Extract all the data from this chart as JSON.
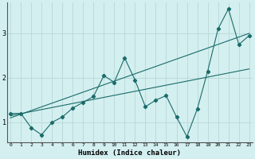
{
  "xlabel": "Humidex (Indice chaleur)",
  "bg_color": "#d4efef",
  "line_color": "#1a6b6b",
  "grid_color": "#b8d8d8",
  "x_ticks": [
    0,
    1,
    2,
    3,
    4,
    5,
    6,
    7,
    8,
    9,
    10,
    11,
    12,
    13,
    14,
    15,
    16,
    17,
    18,
    19,
    20,
    21,
    22,
    23
  ],
  "y_ticks": [
    1,
    2,
    3
  ],
  "xlim": [
    -0.3,
    23.3
  ],
  "ylim": [
    0.55,
    3.7
  ],
  "jagged": {
    "x": [
      0,
      1,
      2,
      3,
      4,
      5,
      6,
      7,
      8,
      9,
      10,
      11,
      12,
      13,
      14,
      15,
      16,
      17,
      18,
      19,
      20,
      21,
      22,
      23
    ],
    "y": [
      1.2,
      1.2,
      0.88,
      0.72,
      1.0,
      1.12,
      1.32,
      1.45,
      1.58,
      2.05,
      1.9,
      2.45,
      1.95,
      1.35,
      1.5,
      1.6,
      1.12,
      0.68,
      1.3,
      2.15,
      3.1,
      3.55,
      2.75,
      2.95
    ]
  },
  "line1": {
    "x": [
      0,
      23
    ],
    "y": [
      1.1,
      3.0
    ]
  },
  "line2": {
    "x": [
      0,
      23
    ],
    "y": [
      1.15,
      2.2
    ]
  }
}
